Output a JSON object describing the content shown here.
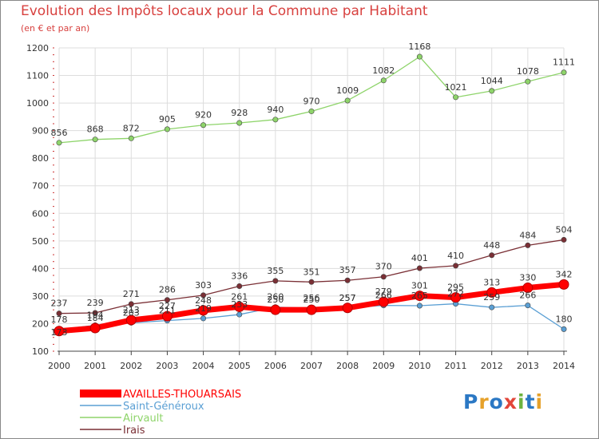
{
  "title": "Evolution des Impôts locaux pour la Commune par Habitant",
  "subtitle": "(en € et par an)",
  "logo_text": "Proxiti",
  "colors": {
    "title": "#d8413f",
    "AVAILLES-THOUARSAIS": "#ff0000",
    "Saint-Généroux": "#5a9fd4",
    "Airvault": "#8ed46a",
    "Irais": "#7a2f35",
    "grid": "#dddddd",
    "axis": "#444444"
  },
  "chart_data": {
    "type": "line",
    "title": "Evolution des Impôts locaux pour la Commune par Habitant",
    "subtitle": "(en € et par an)",
    "xlabel": "",
    "ylabel": "",
    "x": [
      "2000",
      "2001",
      "2002",
      "2003",
      "2004",
      "2005",
      "2006",
      "2007",
      "2008",
      "2009",
      "2010",
      "2011",
      "2012",
      "2013",
      "2014"
    ],
    "ylim": [
      100,
      1200
    ],
    "yticks": [
      100,
      200,
      300,
      400,
      500,
      600,
      700,
      800,
      900,
      1000,
      1100,
      1200
    ],
    "grid": true,
    "legend_position": "bottom-left",
    "series": [
      {
        "name": "AVAILLES-THOUARSAIS",
        "values": [
          173,
          184,
          213,
          227,
          248,
          261,
          250,
          250,
          257,
          279,
          301,
          295,
          313,
          330,
          342
        ]
      },
      {
        "name": "Saint-Généroux",
        "values": [
          178,
          194,
          203,
          211,
          219,
          233,
          260,
          256,
          257,
          266,
          265,
          272,
          259,
          266,
          180
        ]
      },
      {
        "name": "Airvault",
        "values": [
          856,
          868,
          872,
          905,
          920,
          928,
          940,
          970,
          1009,
          1082,
          1168,
          1021,
          1044,
          1078,
          1111
        ]
      },
      {
        "name": "Irais",
        "values": [
          237,
          239,
          271,
          286,
          303,
          336,
          355,
          351,
          357,
          370,
          401,
          410,
          448,
          484,
          504
        ]
      }
    ]
  }
}
